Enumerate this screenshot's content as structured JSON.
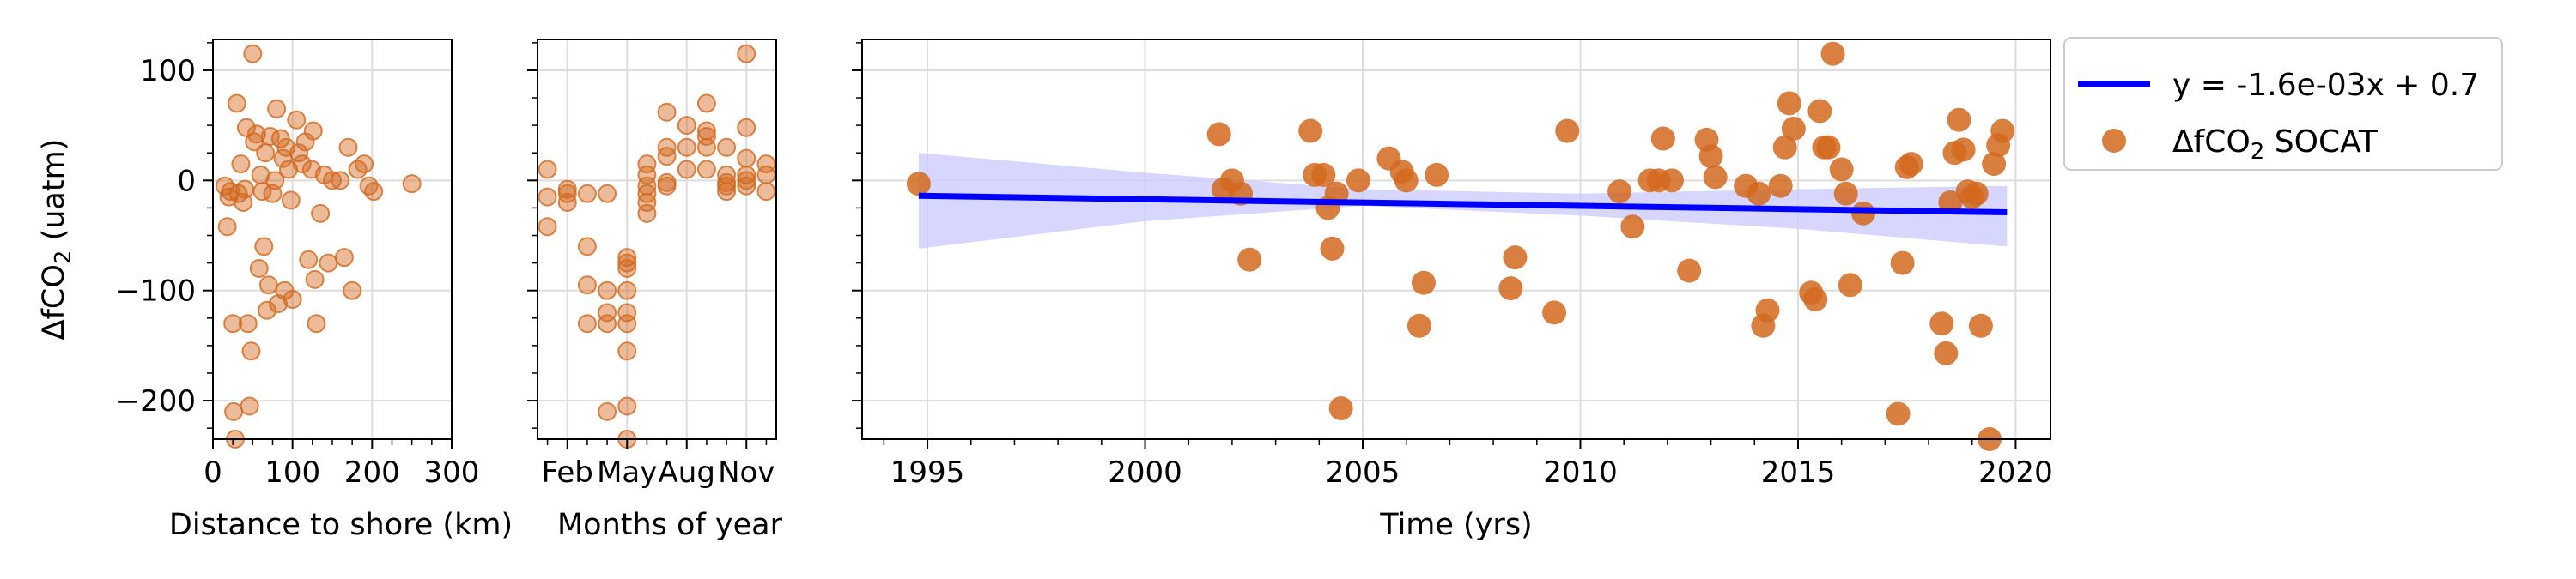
{
  "chart_data": [
    {
      "type": "scatter",
      "panel": "distance",
      "xlabel": "Distance to shore (km)",
      "ylabel": "ΔfCO₂ (uatm)",
      "xlim": [
        0,
        300
      ],
      "ylim": [
        -235,
        128
      ],
      "xticks": [
        0,
        100,
        200,
        300
      ],
      "xtick_labels": [
        "0",
        "100",
        "200",
        "300"
      ],
      "yticks": [
        100,
        0,
        -100,
        -200
      ],
      "ytick_labels": [
        "100",
        "0",
        "−100",
        "−200"
      ],
      "grid": true,
      "series": [
        {
          "points": [
            [
              15,
              -5
            ],
            [
              18,
              -42
            ],
            [
              20,
              -15
            ],
            [
              22,
              -10
            ],
            [
              25,
              -130
            ],
            [
              26,
              -210
            ],
            [
              28,
              -235
            ],
            [
              30,
              70
            ],
            [
              32,
              -12
            ],
            [
              35,
              15
            ],
            [
              38,
              -20
            ],
            [
              40,
              -8
            ],
            [
              42,
              48
            ],
            [
              44,
              -130
            ],
            [
              46,
              -205
            ],
            [
              48,
              -155
            ],
            [
              50,
              115
            ],
            [
              52,
              35
            ],
            [
              55,
              42
            ],
            [
              58,
              -80
            ],
            [
              60,
              5
            ],
            [
              62,
              -10
            ],
            [
              64,
              -60
            ],
            [
              66,
              25
            ],
            [
              68,
              -118
            ],
            [
              70,
              -95
            ],
            [
              72,
              40
            ],
            [
              75,
              -12
            ],
            [
              78,
              0
            ],
            [
              80,
              65
            ],
            [
              82,
              -112
            ],
            [
              85,
              38
            ],
            [
              88,
              20
            ],
            [
              90,
              -100
            ],
            [
              92,
              30
            ],
            [
              95,
              10
            ],
            [
              98,
              -18
            ],
            [
              100,
              -108
            ],
            [
              105,
              55
            ],
            [
              108,
              25
            ],
            [
              112,
              15
            ],
            [
              116,
              35
            ],
            [
              120,
              -72
            ],
            [
              124,
              10
            ],
            [
              126,
              45
            ],
            [
              128,
              -90
            ],
            [
              130,
              -130
            ],
            [
              135,
              -30
            ],
            [
              140,
              5
            ],
            [
              145,
              -75
            ],
            [
              150,
              0
            ],
            [
              160,
              0
            ],
            [
              165,
              -70
            ],
            [
              170,
              30
            ],
            [
              175,
              -100
            ],
            [
              182,
              10
            ],
            [
              190,
              15
            ],
            [
              196,
              -5
            ],
            [
              202,
              -10
            ],
            [
              250,
              -3
            ]
          ]
        }
      ],
      "color": "#d2691e"
    },
    {
      "type": "scatter",
      "panel": "months",
      "xlabel": "Months of year",
      "xlim": [
        0.5,
        12.5
      ],
      "ylim": [
        -235,
        128
      ],
      "xticks": [
        2,
        5,
        8,
        11
      ],
      "xtick_labels": [
        "Feb",
        "May",
        "Aug",
        "Nov"
      ],
      "grid": true,
      "series": [
        {
          "points": [
            [
              1,
              10
            ],
            [
              1,
              -15
            ],
            [
              1,
              -42
            ],
            [
              2,
              -8
            ],
            [
              2,
              -12
            ],
            [
              2,
              -20
            ],
            [
              3,
              -12
            ],
            [
              3,
              -130
            ],
            [
              3,
              -95
            ],
            [
              3,
              -60
            ],
            [
              4,
              -12
            ],
            [
              4,
              -100
            ],
            [
              4,
              -120
            ],
            [
              4,
              -130
            ],
            [
              4,
              -210
            ],
            [
              5,
              -70
            ],
            [
              5,
              -75
            ],
            [
              5,
              -80
            ],
            [
              5,
              -100
            ],
            [
              5,
              -120
            ],
            [
              5,
              -130
            ],
            [
              5,
              -155
            ],
            [
              5,
              -205
            ],
            [
              5,
              -235
            ],
            [
              6,
              15
            ],
            [
              6,
              5
            ],
            [
              6,
              -5
            ],
            [
              6,
              -12
            ],
            [
              6,
              -20
            ],
            [
              6,
              -30
            ],
            [
              7,
              62
            ],
            [
              7,
              30
            ],
            [
              7,
              22
            ],
            [
              7,
              -2
            ],
            [
              7,
              -5
            ],
            [
              8,
              50
            ],
            [
              8,
              30
            ],
            [
              8,
              10
            ],
            [
              9,
              70
            ],
            [
              9,
              45
            ],
            [
              9,
              40
            ],
            [
              9,
              30
            ],
            [
              9,
              10
            ],
            [
              10,
              5
            ],
            [
              10,
              -5
            ],
            [
              10,
              -10
            ],
            [
              10,
              30
            ],
            [
              10,
              -2
            ],
            [
              11,
              115
            ],
            [
              11,
              48
            ],
            [
              11,
              20
            ],
            [
              11,
              5
            ],
            [
              11,
              0
            ],
            [
              11,
              -5
            ],
            [
              12,
              15
            ],
            [
              12,
              5
            ],
            [
              12,
              -10
            ]
          ]
        }
      ],
      "color": "#d2691e"
    },
    {
      "type": "scatter",
      "panel": "time",
      "xlabel": "Time (yrs)",
      "xlim": [
        1993.5,
        2020.8
      ],
      "ylim": [
        -235,
        128
      ],
      "xticks": [
        1995,
        2000,
        2005,
        2010,
        2015,
        2020
      ],
      "xtick_labels": [
        "1995",
        "2000",
        "2005",
        "2010",
        "2015",
        "2020"
      ],
      "grid": true,
      "series": [
        {
          "name": "ΔfCO₂ SOCAT",
          "points": [
            [
              1994.8,
              -3
            ],
            [
              2001.7,
              42
            ],
            [
              2001.8,
              -8
            ],
            [
              2002.0,
              0
            ],
            [
              2002.2,
              -12
            ],
            [
              2002.4,
              -72
            ],
            [
              2003.8,
              45
            ],
            [
              2003.9,
              5
            ],
            [
              2004.1,
              5
            ],
            [
              2004.2,
              -25
            ],
            [
              2004.3,
              -62
            ],
            [
              2004.4,
              -12
            ],
            [
              2004.5,
              -207
            ],
            [
              2004.9,
              0
            ],
            [
              2005.6,
              20
            ],
            [
              2005.9,
              8
            ],
            [
              2006.0,
              0
            ],
            [
              2006.3,
              -132
            ],
            [
              2006.4,
              -93
            ],
            [
              2006.7,
              5
            ],
            [
              2008.4,
              -98
            ],
            [
              2008.5,
              -70
            ],
            [
              2009.4,
              -120
            ],
            [
              2009.7,
              45
            ],
            [
              2010.9,
              -10
            ],
            [
              2011.2,
              -42
            ],
            [
              2011.6,
              0
            ],
            [
              2011.8,
              0
            ],
            [
              2011.9,
              38
            ],
            [
              2012.1,
              0
            ],
            [
              2012.5,
              -82
            ],
            [
              2012.9,
              37
            ],
            [
              2013.0,
              22
            ],
            [
              2013.1,
              3
            ],
            [
              2013.8,
              -5
            ],
            [
              2014.1,
              -12
            ],
            [
              2014.2,
              -132
            ],
            [
              2014.3,
              -118
            ],
            [
              2014.6,
              -5
            ],
            [
              2014.7,
              30
            ],
            [
              2014.8,
              70
            ],
            [
              2014.9,
              47
            ],
            [
              2015.3,
              -102
            ],
            [
              2015.4,
              -108
            ],
            [
              2015.5,
              63
            ],
            [
              2015.6,
              30
            ],
            [
              2015.7,
              30
            ],
            [
              2015.8,
              115
            ],
            [
              2016.0,
              10
            ],
            [
              2016.1,
              -12
            ],
            [
              2016.2,
              -95
            ],
            [
              2016.5,
              -30
            ],
            [
              2017.3,
              -212
            ],
            [
              2017.4,
              -75
            ],
            [
              2017.5,
              12
            ],
            [
              2017.6,
              15
            ],
            [
              2018.3,
              -130
            ],
            [
              2018.4,
              -157
            ],
            [
              2018.5,
              -20
            ],
            [
              2018.6,
              25
            ],
            [
              2018.7,
              55
            ],
            [
              2018.8,
              28
            ],
            [
              2018.9,
              -10
            ],
            [
              2019.0,
              -15
            ],
            [
              2019.1,
              -12
            ],
            [
              2019.2,
              -132
            ],
            [
              2019.4,
              -235
            ],
            [
              2019.5,
              15
            ],
            [
              2019.6,
              32
            ],
            [
              2019.7,
              45
            ]
          ]
        },
        {
          "name": "y = -1.6e-03x + 0.7",
          "kind": "fit-line",
          "x": [
            1994.8,
            2019.8
          ],
          "y": [
            -14,
            -29
          ]
        },
        {
          "kind": "confidence-band",
          "x": [
            1994.8,
            2000,
            2005,
            2010,
            2015,
            2019.8
          ],
          "upper": [
            25,
            7,
            -8,
            -12,
            -8,
            -5
          ],
          "lower": [
            -62,
            -37,
            -23,
            -32,
            -44,
            -60
          ]
        }
      ],
      "legend": {
        "position": "outside-right",
        "entries": [
          "y = -1.6e-03x + 0.7",
          "ΔfCO₂ SOCAT"
        ]
      },
      "colors": {
        "points": "#d2691e",
        "fit_line": "#0000ff",
        "band": "#c8c8ff"
      }
    }
  ]
}
